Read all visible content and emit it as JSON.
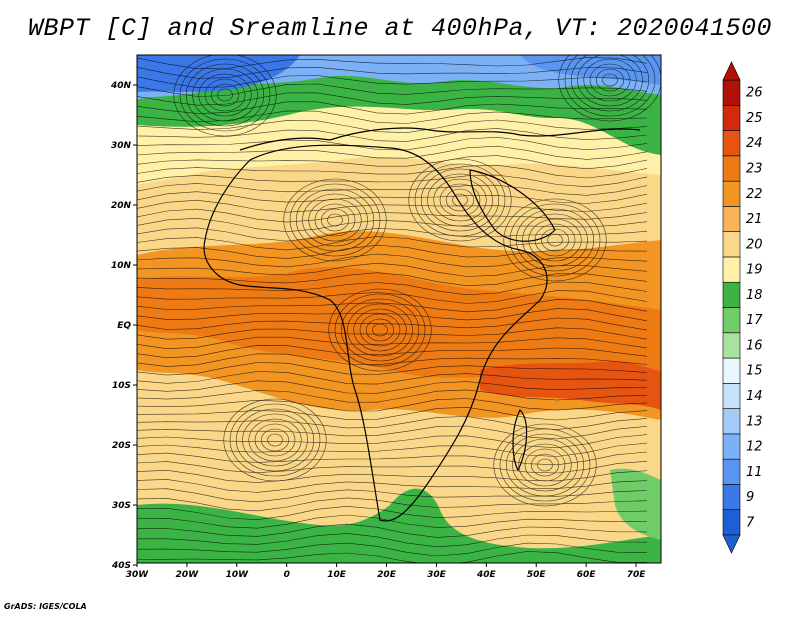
{
  "title": "WBPT [C] and Sreamline at 400hPa, VT: 2020041500",
  "credit": "GrADS: IGES/COLA",
  "map": {
    "lon_labels": [
      "30W",
      "20W",
      "10W",
      "0",
      "10E",
      "20E",
      "30E",
      "40E",
      "50E",
      "60E",
      "70E"
    ],
    "lat_labels": [
      "40N",
      "30N",
      "20N",
      "10N",
      "EQ",
      "10S",
      "20S",
      "30S",
      "40S"
    ]
  },
  "colorbar": {
    "levels": [
      "7",
      "9",
      "11",
      "12",
      "13",
      "14",
      "15",
      "16",
      "17",
      "18",
      "19",
      "20",
      "21",
      "22",
      "23",
      "24",
      "25",
      "26"
    ],
    "colors": [
      "#1e5fd6",
      "#3a78e8",
      "#5a96f0",
      "#7db1f5",
      "#a2cbf8",
      "#c6e2fb",
      "#e9f7ff",
      "#a9e2a0",
      "#6fcc67",
      "#3cb445",
      "#fff1a8",
      "#fbd889",
      "#f9b458",
      "#f29522",
      "#ee7a14",
      "#e55410",
      "#d22b0c",
      "#b0120a"
    ]
  }
}
